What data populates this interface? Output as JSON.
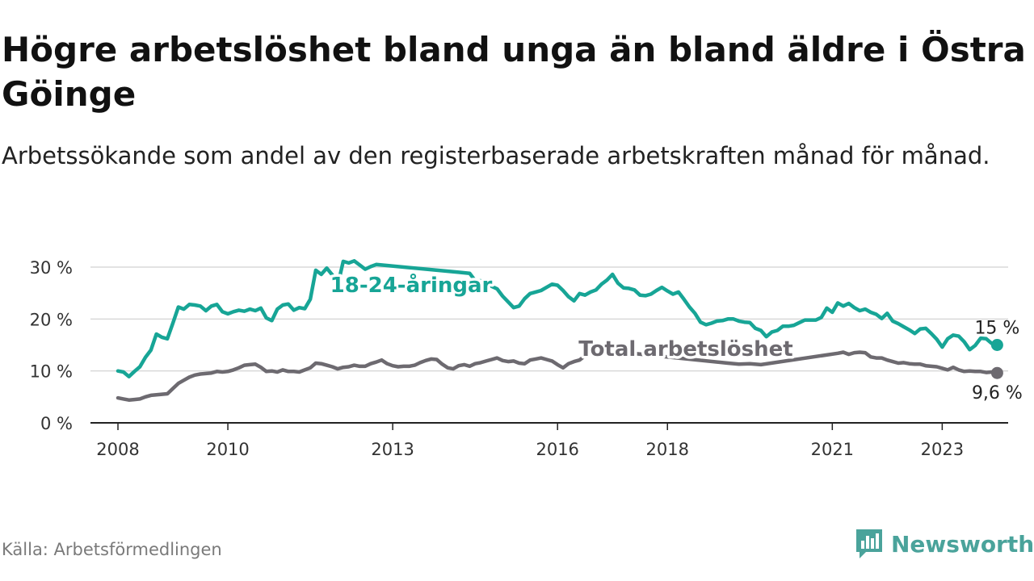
{
  "title": "Högre arbetslöshet bland unga än bland äldre i Östra Göinge",
  "subtitle": "Arbetssökande som andel av den registerbaserade arbetskraften månad för månad.",
  "source": "Källa: Arbetsförmedlingen",
  "brand": {
    "name": "Newsworthy",
    "icon": "newsworthy-logo-icon",
    "color": "#4aa39b"
  },
  "colors": {
    "youth": "#17a596",
    "total": "#6d6a70",
    "grid": "#d9d9d9",
    "axis": "#222222"
  },
  "chart_data": {
    "type": "line",
    "title": "Högre arbetslöshet bland unga än bland äldre i Östra Göinge",
    "xlabel": "",
    "ylabel": "",
    "xlim": [
      2007.5,
      2024.2
    ],
    "ylim": [
      0,
      30
    ],
    "y_ticks": [
      0,
      10,
      20,
      30
    ],
    "y_tick_labels": [
      "0 %",
      "10 %",
      "20 %",
      "30 %"
    ],
    "x_ticks": [
      2008,
      2010,
      2013,
      2016,
      2018,
      2021,
      2023
    ],
    "x_tick_labels": [
      "2008",
      "2010",
      "2013",
      "2016",
      "2018",
      "2021",
      "2023"
    ],
    "grid": true,
    "series": [
      {
        "name": "18-24-åringar",
        "label": "18-24-åringar",
        "end_label": "15 %",
        "end_value": 15,
        "points": [
          [
            2008.0,
            10.0
          ],
          [
            2008.1,
            9.8
          ],
          [
            2008.2,
            8.9
          ],
          [
            2008.3,
            9.9
          ],
          [
            2008.4,
            10.8
          ],
          [
            2008.5,
            12.6
          ],
          [
            2008.6,
            14.0
          ],
          [
            2008.7,
            17.1
          ],
          [
            2008.8,
            16.5
          ],
          [
            2008.9,
            16.2
          ],
          [
            2009.0,
            19.2
          ],
          [
            2009.1,
            22.3
          ],
          [
            2009.2,
            21.9
          ],
          [
            2009.3,
            22.8
          ],
          [
            2009.4,
            22.7
          ],
          [
            2009.5,
            22.5
          ],
          [
            2009.6,
            21.6
          ],
          [
            2009.7,
            22.5
          ],
          [
            2009.8,
            22.8
          ],
          [
            2009.9,
            21.4
          ],
          [
            2010.0,
            21.0
          ],
          [
            2010.1,
            21.4
          ],
          [
            2010.2,
            21.7
          ],
          [
            2010.3,
            21.5
          ],
          [
            2010.4,
            21.9
          ],
          [
            2010.5,
            21.6
          ],
          [
            2010.6,
            22.1
          ],
          [
            2010.7,
            20.2
          ],
          [
            2010.8,
            19.7
          ],
          [
            2010.9,
            21.9
          ],
          [
            2011.0,
            22.7
          ],
          [
            2011.1,
            22.9
          ],
          [
            2011.2,
            21.7
          ],
          [
            2011.3,
            22.2
          ],
          [
            2011.4,
            22.0
          ],
          [
            2011.5,
            23.8
          ],
          [
            2011.6,
            29.4
          ],
          [
            2011.7,
            28.6
          ],
          [
            2011.8,
            29.8
          ],
          [
            2011.9,
            28.5
          ],
          [
            2012.0,
            26.5
          ],
          [
            2012.1,
            31.1
          ],
          [
            2012.2,
            30.8
          ],
          [
            2012.3,
            31.2
          ],
          [
            2012.4,
            30.4
          ],
          [
            2012.5,
            29.6
          ],
          [
            2012.6,
            30.1
          ],
          [
            2012.7,
            30.5
          ],
          [
            2014.2,
            29.0
          ],
          [
            2014.4,
            28.8
          ],
          [
            2014.5,
            27.4
          ],
          [
            2014.7,
            27.3
          ],
          [
            2014.8,
            26.3
          ],
          [
            2014.9,
            25.8
          ],
          [
            2015.0,
            24.4
          ],
          [
            2015.1,
            23.3
          ],
          [
            2015.2,
            22.2
          ],
          [
            2015.3,
            22.5
          ],
          [
            2015.4,
            23.9
          ],
          [
            2015.5,
            24.9
          ],
          [
            2015.6,
            25.2
          ],
          [
            2015.7,
            25.5
          ],
          [
            2015.8,
            26.1
          ],
          [
            2015.9,
            26.7
          ],
          [
            2016.0,
            26.5
          ],
          [
            2016.1,
            25.5
          ],
          [
            2016.2,
            24.3
          ],
          [
            2016.3,
            23.5
          ],
          [
            2016.4,
            24.9
          ],
          [
            2016.5,
            24.6
          ],
          [
            2016.6,
            25.2
          ],
          [
            2016.7,
            25.6
          ],
          [
            2016.8,
            26.7
          ],
          [
            2016.9,
            27.5
          ],
          [
            2017.0,
            28.6
          ],
          [
            2017.1,
            26.9
          ],
          [
            2017.2,
            26.0
          ],
          [
            2017.3,
            25.9
          ],
          [
            2017.4,
            25.6
          ],
          [
            2017.5,
            24.6
          ],
          [
            2017.6,
            24.5
          ],
          [
            2017.7,
            24.8
          ],
          [
            2017.8,
            25.5
          ],
          [
            2017.9,
            26.1
          ],
          [
            2018.0,
            25.4
          ],
          [
            2018.1,
            24.8
          ],
          [
            2018.2,
            25.2
          ],
          [
            2018.3,
            23.8
          ],
          [
            2018.4,
            22.3
          ],
          [
            2018.5,
            21.1
          ],
          [
            2018.6,
            19.4
          ],
          [
            2018.7,
            18.9
          ],
          [
            2018.8,
            19.2
          ],
          [
            2018.9,
            19.6
          ],
          [
            2019.0,
            19.7
          ],
          [
            2019.1,
            20.0
          ],
          [
            2019.2,
            20.0
          ],
          [
            2019.3,
            19.6
          ],
          [
            2019.4,
            19.4
          ],
          [
            2019.5,
            19.3
          ],
          [
            2019.6,
            18.2
          ],
          [
            2019.7,
            17.8
          ],
          [
            2019.8,
            16.6
          ],
          [
            2019.9,
            17.5
          ],
          [
            2020.0,
            17.8
          ],
          [
            2020.1,
            18.6
          ],
          [
            2020.2,
            18.6
          ],
          [
            2020.3,
            18.8
          ],
          [
            2020.4,
            19.3
          ],
          [
            2020.5,
            19.8
          ],
          [
            2020.6,
            19.8
          ],
          [
            2020.7,
            19.8
          ],
          [
            2020.8,
            20.3
          ],
          [
            2020.9,
            22.1
          ],
          [
            2021.0,
            21.3
          ],
          [
            2021.1,
            23.1
          ],
          [
            2021.2,
            22.5
          ],
          [
            2021.3,
            23.0
          ],
          [
            2021.4,
            22.2
          ],
          [
            2021.5,
            21.6
          ],
          [
            2021.6,
            21.9
          ],
          [
            2021.7,
            21.3
          ],
          [
            2021.8,
            20.9
          ],
          [
            2021.9,
            20.1
          ],
          [
            2022.0,
            21.1
          ],
          [
            2022.1,
            19.6
          ],
          [
            2022.2,
            19.1
          ],
          [
            2022.3,
            18.5
          ],
          [
            2022.4,
            17.9
          ],
          [
            2022.5,
            17.2
          ],
          [
            2022.6,
            18.1
          ],
          [
            2022.7,
            18.2
          ],
          [
            2022.8,
            17.2
          ],
          [
            2022.9,
            16.1
          ],
          [
            2023.0,
            14.6
          ],
          [
            2023.1,
            16.2
          ],
          [
            2023.2,
            16.9
          ],
          [
            2023.3,
            16.7
          ],
          [
            2023.4,
            15.6
          ],
          [
            2023.5,
            14.1
          ],
          [
            2023.6,
            14.9
          ],
          [
            2023.7,
            16.3
          ],
          [
            2023.8,
            16.2
          ],
          [
            2023.9,
            15.3
          ],
          [
            2024.0,
            15.0
          ]
        ]
      },
      {
        "name": "Total arbetslöshet",
        "label": "Total arbetslöshet",
        "end_label": "9,6 %",
        "end_value": 9.6,
        "points": [
          [
            2008.0,
            4.8
          ],
          [
            2008.1,
            4.6
          ],
          [
            2008.2,
            4.4
          ],
          [
            2008.3,
            4.5
          ],
          [
            2008.4,
            4.6
          ],
          [
            2008.5,
            5.0
          ],
          [
            2008.6,
            5.3
          ],
          [
            2008.7,
            5.4
          ],
          [
            2008.8,
            5.5
          ],
          [
            2008.9,
            5.6
          ],
          [
            2009.0,
            6.6
          ],
          [
            2009.1,
            7.6
          ],
          [
            2009.2,
            8.2
          ],
          [
            2009.3,
            8.8
          ],
          [
            2009.4,
            9.2
          ],
          [
            2009.5,
            9.4
          ],
          [
            2009.6,
            9.5
          ],
          [
            2009.7,
            9.6
          ],
          [
            2009.8,
            9.9
          ],
          [
            2009.9,
            9.8
          ],
          [
            2010.0,
            9.9
          ],
          [
            2010.1,
            10.2
          ],
          [
            2010.2,
            10.6
          ],
          [
            2010.3,
            11.1
          ],
          [
            2010.4,
            11.2
          ],
          [
            2010.5,
            11.3
          ],
          [
            2010.6,
            10.7
          ],
          [
            2010.7,
            9.9
          ],
          [
            2010.8,
            10.0
          ],
          [
            2010.9,
            9.8
          ],
          [
            2011.0,
            10.2
          ],
          [
            2011.1,
            9.9
          ],
          [
            2011.2,
            9.9
          ],
          [
            2011.3,
            9.8
          ],
          [
            2011.4,
            10.2
          ],
          [
            2011.5,
            10.6
          ],
          [
            2011.6,
            11.5
          ],
          [
            2011.7,
            11.4
          ],
          [
            2011.8,
            11.1
          ],
          [
            2011.9,
            10.8
          ],
          [
            2012.0,
            10.4
          ],
          [
            2012.1,
            10.7
          ],
          [
            2012.2,
            10.8
          ],
          [
            2012.3,
            11.1
          ],
          [
            2012.4,
            10.9
          ],
          [
            2012.5,
            10.9
          ],
          [
            2012.6,
            11.4
          ],
          [
            2012.7,
            11.7
          ],
          [
            2012.8,
            12.1
          ],
          [
            2012.9,
            11.4
          ],
          [
            2013.0,
            11.0
          ],
          [
            2013.1,
            10.8
          ],
          [
            2013.2,
            10.9
          ],
          [
            2013.3,
            10.9
          ],
          [
            2013.4,
            11.1
          ],
          [
            2013.5,
            11.6
          ],
          [
            2013.6,
            12.0
          ],
          [
            2013.7,
            12.3
          ],
          [
            2013.8,
            12.2
          ],
          [
            2013.9,
            11.3
          ],
          [
            2014.0,
            10.6
          ],
          [
            2014.1,
            10.4
          ],
          [
            2014.2,
            11.0
          ],
          [
            2014.3,
            11.2
          ],
          [
            2014.4,
            10.9
          ],
          [
            2014.5,
            11.4
          ],
          [
            2014.6,
            11.6
          ],
          [
            2014.7,
            11.9
          ],
          [
            2014.8,
            12.2
          ],
          [
            2014.9,
            12.5
          ],
          [
            2015.0,
            12.0
          ],
          [
            2015.1,
            11.8
          ],
          [
            2015.2,
            11.9
          ],
          [
            2015.3,
            11.5
          ],
          [
            2015.4,
            11.4
          ],
          [
            2015.5,
            12.1
          ],
          [
            2015.6,
            12.3
          ],
          [
            2015.7,
            12.5
          ],
          [
            2015.8,
            12.2
          ],
          [
            2015.9,
            11.9
          ],
          [
            2016.0,
            11.2
          ],
          [
            2016.1,
            10.6
          ],
          [
            2016.2,
            11.4
          ],
          [
            2016.3,
            11.8
          ],
          [
            2016.4,
            12.1
          ],
          [
            2016.5,
            12.9
          ],
          [
            2016.6,
            13.6
          ],
          [
            2016.7,
            14.0
          ],
          [
            2016.8,
            14.0
          ],
          [
            2019.1,
            11.5
          ],
          [
            2019.3,
            11.3
          ],
          [
            2019.5,
            11.4
          ],
          [
            2019.7,
            11.2
          ],
          [
            2021.1,
            13.4
          ],
          [
            2021.2,
            13.6
          ],
          [
            2021.3,
            13.2
          ],
          [
            2021.4,
            13.5
          ],
          [
            2021.5,
            13.6
          ],
          [
            2021.6,
            13.5
          ],
          [
            2021.7,
            12.7
          ],
          [
            2021.8,
            12.5
          ],
          [
            2021.9,
            12.5
          ],
          [
            2022.0,
            12.1
          ],
          [
            2022.1,
            11.8
          ],
          [
            2022.2,
            11.5
          ],
          [
            2022.3,
            11.6
          ],
          [
            2022.4,
            11.4
          ],
          [
            2022.5,
            11.3
          ],
          [
            2022.6,
            11.3
          ],
          [
            2022.7,
            11.0
          ],
          [
            2022.8,
            10.9
          ],
          [
            2022.9,
            10.8
          ],
          [
            2023.0,
            10.5
          ],
          [
            2023.1,
            10.2
          ],
          [
            2023.2,
            10.7
          ],
          [
            2023.3,
            10.2
          ],
          [
            2023.4,
            9.9
          ],
          [
            2023.5,
            10.0
          ],
          [
            2023.6,
            9.9
          ],
          [
            2023.7,
            9.9
          ],
          [
            2023.8,
            9.7
          ],
          [
            2023.9,
            9.8
          ],
          [
            2024.0,
            9.6
          ]
        ]
      }
    ]
  }
}
